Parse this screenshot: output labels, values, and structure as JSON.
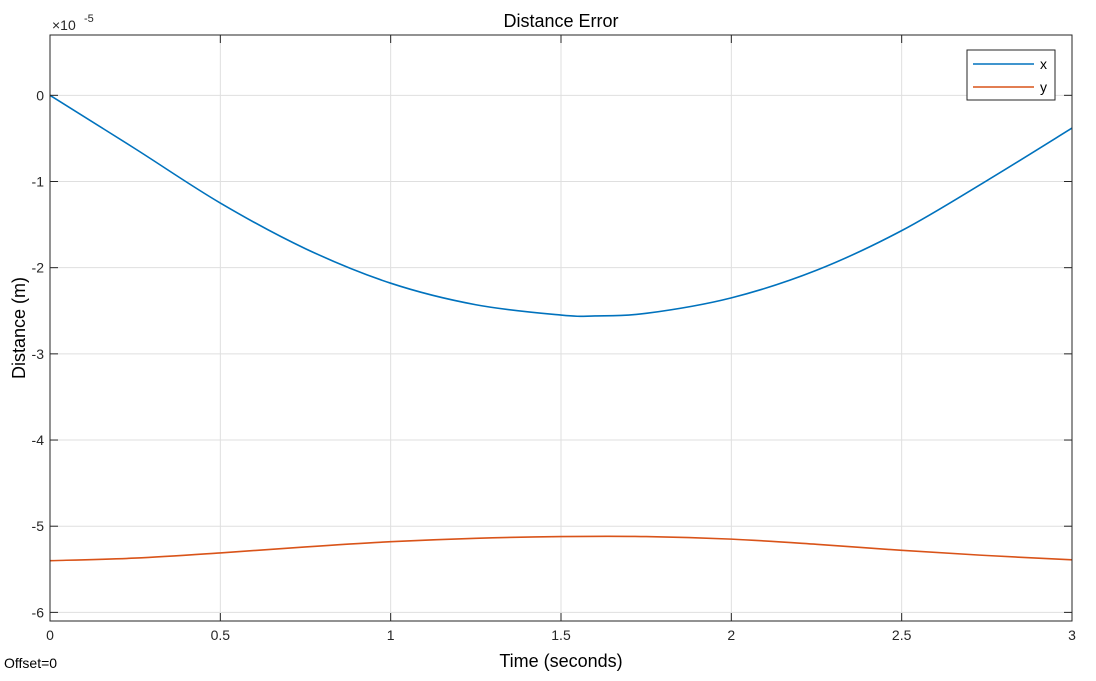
{
  "footer": {
    "offset_label": "Offset=0"
  },
  "chart_data": {
    "type": "line",
    "title": "Distance Error",
    "xlabel": "Time (seconds)",
    "ylabel": "Distance (m)",
    "y_exponent_label": "×10",
    "y_exponent_power": "-5",
    "xlim": [
      0,
      3
    ],
    "ylim": [
      -6.1,
      0.7
    ],
    "xticks": [
      0,
      0.5,
      1,
      1.5,
      2,
      2.5,
      3
    ],
    "xtick_labels": [
      "0",
      "0.5",
      "1",
      "1.5",
      "2",
      "2.5",
      "3"
    ],
    "yticks": [
      -6,
      -5,
      -4,
      -3,
      -2,
      -1,
      0
    ],
    "ytick_labels": [
      "-6",
      "-5",
      "-4",
      "-3",
      "-2",
      "-1",
      "0"
    ],
    "grid": true,
    "legend_position": "top-right",
    "series": [
      {
        "name": "x",
        "color": "#0072BD",
        "x": [
          0,
          0.25,
          0.5,
          0.75,
          1,
          1.25,
          1.5,
          1.6,
          1.75,
          2,
          2.25,
          2.5,
          2.75,
          3
        ],
        "y": [
          0,
          -0.62,
          -1.25,
          -1.78,
          -2.18,
          -2.43,
          -2.55,
          -2.56,
          -2.53,
          -2.35,
          -2.03,
          -1.57,
          -0.99,
          -0.38
        ]
      },
      {
        "name": "y",
        "color": "#D95319",
        "x": [
          0,
          0.25,
          0.5,
          0.75,
          1,
          1.25,
          1.5,
          1.75,
          2,
          2.25,
          2.5,
          2.75,
          3
        ],
        "y": [
          -5.4,
          -5.37,
          -5.31,
          -5.24,
          -5.18,
          -5.14,
          -5.12,
          -5.12,
          -5.15,
          -5.21,
          -5.28,
          -5.34,
          -5.39
        ]
      }
    ]
  }
}
